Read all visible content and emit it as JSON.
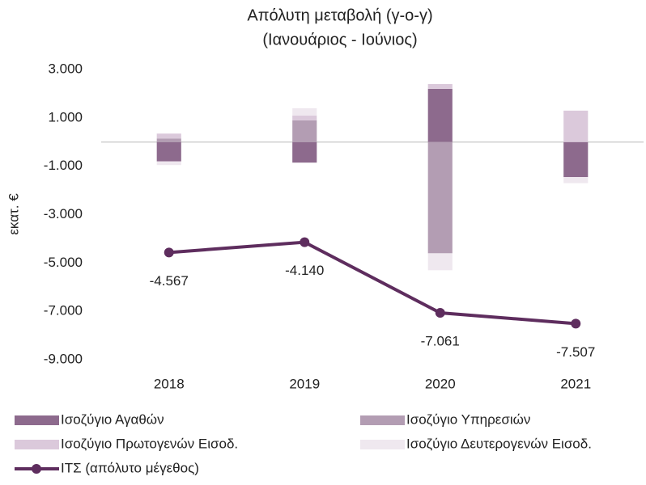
{
  "chart_data": {
    "type": "bar",
    "stacked": true,
    "title": "Απόλυτη μεταβολή (γ-ο-γ)",
    "subtitle": "(Ιανουάριος - Ιούνιος)",
    "y_label": "εκατ. €",
    "categories": [
      "2018",
      "2019",
      "2020",
      "2021"
    ],
    "ylim": [
      -9000,
      3000
    ],
    "yticks": [
      {
        "value": 3000,
        "label": "3.000"
      },
      {
        "value": 1000,
        "label": "1.000"
      },
      {
        "value": -1000,
        "label": "-1.000"
      },
      {
        "value": -3000,
        "label": "-3.000"
      },
      {
        "value": -5000,
        "label": "-5.000"
      },
      {
        "value": -7000,
        "label": "-7.000"
      },
      {
        "value": -9000,
        "label": "-9.000"
      }
    ],
    "grid": false,
    "series": [
      {
        "name": "Ισοζύγιο Αγαθών",
        "color": "#8d6a8d",
        "values": [
          -800,
          -850,
          2200,
          -1450
        ]
      },
      {
        "name": "Ισοζύγιο Υπηρεσιών",
        "color": "#b39db3",
        "values": [
          150,
          900,
          -4600,
          0
        ]
      },
      {
        "name": "Ισοζύγιο Πρωτογενών Εισοδ.",
        "color": "#dbc9db",
        "values": [
          200,
          200,
          200,
          1300
        ]
      },
      {
        "name": "Ισοζύγιο Δευτερογενών Εισοδ.",
        "color": "#efe8ef",
        "values": [
          -150,
          300,
          -700,
          -250
        ]
      },
      {
        "name": "ΙΤΣ (απόλυτο μέγεθος)",
        "type": "line",
        "color": "#5e2d5e",
        "values": [
          -4567,
          -4140,
          -7061,
          -7507
        ],
        "value_labels": [
          "-4.567",
          "-4.140",
          "-7.061",
          "-7.507"
        ]
      }
    ]
  }
}
